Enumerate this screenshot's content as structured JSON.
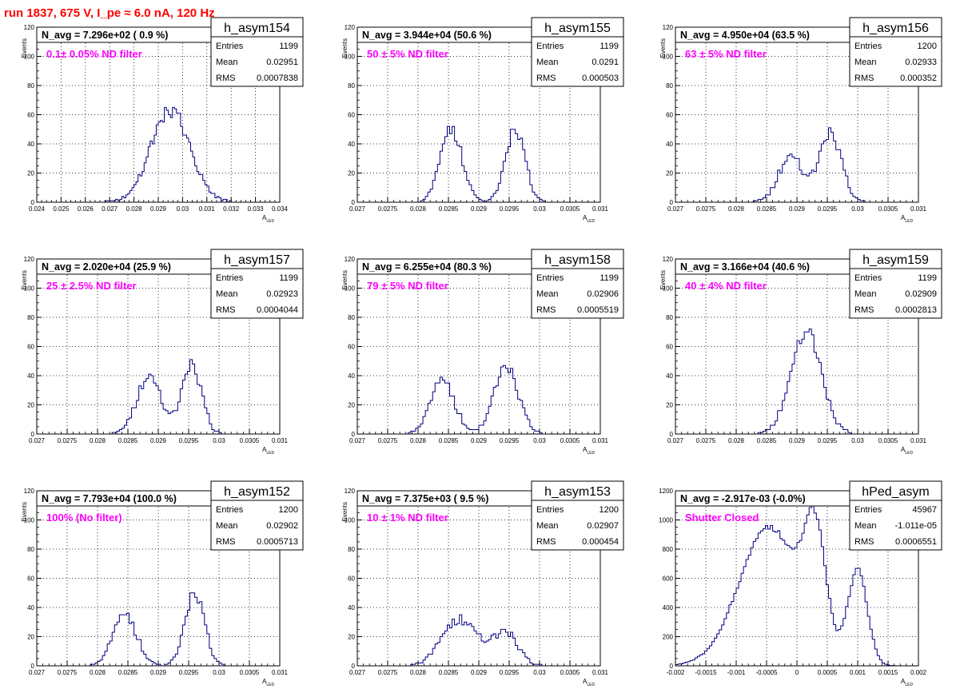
{
  "page": {
    "title": "run 1837,   675 V, I_pe ≈ 6.0 nA, 120 Hz"
  },
  "style": {
    "title_color": "#ff0000",
    "annotation_color": "#ff00ff",
    "hist_color": "#000080",
    "frame_color": "#000000",
    "grid_color": "#000000"
  },
  "chart_data": [
    {
      "type": "histogram",
      "name": "h_asym154",
      "nstat_label": "N_avg = 7.296e+02 ( 0.9 %)",
      "annotation": "0.1± 0.05% ND filter",
      "stats": {
        "entries": "1199",
        "mean": "0.02951",
        "rms": "0.0007838"
      },
      "xlabel": "A",
      "xlabel_sub": "LED",
      "ylabel": "Events",
      "xlim": [
        0.024,
        0.034
      ],
      "ylim": [
        0,
        120
      ],
      "xticks": [
        0.024,
        0.025,
        0.026,
        0.027,
        0.028,
        0.029,
        0.03,
        0.031,
        0.032,
        0.033,
        0.034
      ],
      "xtick_labels": [
        "0.024",
        "0.025",
        "0.026",
        "0.027",
        "0.028",
        "0.029",
        "0.03",
        "0.031",
        "0.032",
        "0.033",
        "0.034"
      ],
      "yticks": [
        0,
        20,
        40,
        60,
        80,
        100,
        120
      ],
      "ytick_labels": [
        "0",
        "20",
        "40",
        "60",
        "80",
        "100",
        "120"
      ],
      "hist": {
        "mode": "gauss",
        "n": 120,
        "peaks": [
          [
            0.0295,
            0.0008,
            63
          ]
        ]
      }
    },
    {
      "type": "histogram",
      "name": "h_asym155",
      "nstat_label": "N_avg = 3.944e+04 (50.6 %)",
      "annotation": "50 ± 5% ND filter",
      "stats": {
        "entries": "1199",
        "mean": "0.0291",
        "rms": "0.000503"
      },
      "xlabel": "A",
      "xlabel_sub": "LED",
      "ylabel": "Events",
      "xlim": [
        0.027,
        0.031
      ],
      "ylim": [
        0,
        120
      ],
      "xticks": [
        0.027,
        0.0275,
        0.028,
        0.0285,
        0.029,
        0.0295,
        0.03,
        0.0305,
        0.031
      ],
      "xtick_labels": [
        "0.027",
        "0.0275",
        "0.028",
        "0.0285",
        "0.029",
        "0.0295",
        "0.03",
        "0.0305",
        "0.031"
      ],
      "yticks": [
        0,
        20,
        40,
        60,
        80,
        100,
        120
      ],
      "ytick_labels": [
        "0",
        "20",
        "40",
        "60",
        "80",
        "100",
        "120"
      ],
      "hist": {
        "mode": "gauss",
        "n": 100,
        "peaks": [
          [
            0.02855,
            0.00018,
            50
          ],
          [
            0.0296,
            0.00016,
            50
          ]
        ]
      }
    },
    {
      "type": "histogram",
      "name": "h_asym156",
      "nstat_label": "N_avg = 4.950e+04 (63.5 %)",
      "annotation": "63 ± 5% ND filter",
      "stats": {
        "entries": "1200",
        "mean": "0.02933",
        "rms": "0.000352"
      },
      "xlabel": "A",
      "xlabel_sub": "LED",
      "ylabel": "Events",
      "xlim": [
        0.027,
        0.031
      ],
      "ylim": [
        0,
        120
      ],
      "xticks": [
        0.027,
        0.0275,
        0.028,
        0.0285,
        0.029,
        0.0295,
        0.03,
        0.0305,
        0.031
      ],
      "xtick_labels": [
        "0.027",
        "0.0275",
        "0.028",
        "0.0285",
        "0.029",
        "0.0295",
        "0.03",
        "0.0305",
        "0.031"
      ],
      "yticks": [
        0,
        20,
        40,
        60,
        80,
        100,
        120
      ],
      "ytick_labels": [
        "0",
        "20",
        "40",
        "60",
        "80",
        "100",
        "120"
      ],
      "hist": {
        "mode": "gauss",
        "n": 100,
        "peaks": [
          [
            0.0289,
            0.0002,
            32
          ],
          [
            0.02955,
            0.00018,
            48
          ]
        ]
      }
    },
    {
      "type": "histogram",
      "name": "h_asym157",
      "nstat_label": "N_avg = 2.020e+04 (25.9 %)",
      "annotation": "25 ± 2.5% ND filter",
      "stats": {
        "entries": "1199",
        "mean": "0.02923",
        "rms": "0.0004044"
      },
      "xlabel": "A",
      "xlabel_sub": "LED",
      "ylabel": "Events",
      "xlim": [
        0.027,
        0.031
      ],
      "ylim": [
        0,
        120
      ],
      "xticks": [
        0.027,
        0.0275,
        0.028,
        0.0285,
        0.029,
        0.0295,
        0.03,
        0.0305,
        0.031
      ],
      "xtick_labels": [
        "0.027",
        "0.0275",
        "0.028",
        "0.0285",
        "0.029",
        "0.0295",
        "0.03",
        "0.0305",
        "0.031"
      ],
      "yticks": [
        0,
        20,
        40,
        60,
        80,
        100,
        120
      ],
      "ytick_labels": [
        "0",
        "20",
        "40",
        "60",
        "80",
        "100",
        "120"
      ],
      "hist": {
        "mode": "gauss",
        "n": 100,
        "peaks": [
          [
            0.02885,
            0.0002,
            40
          ],
          [
            0.02955,
            0.00016,
            48
          ]
        ]
      }
    },
    {
      "type": "histogram",
      "name": "h_asym158",
      "nstat_label": "N_avg = 6.255e+04 (80.3 %)",
      "annotation": "79 ± 5% ND filter",
      "stats": {
        "entries": "1199",
        "mean": "0.02906",
        "rms": "0.0005519"
      },
      "xlabel": "A",
      "xlabel_sub": "LED",
      "ylabel": "Events",
      "xlim": [
        0.027,
        0.031
      ],
      "ylim": [
        0,
        120
      ],
      "xticks": [
        0.027,
        0.0275,
        0.028,
        0.0285,
        0.029,
        0.0295,
        0.03,
        0.0305,
        0.031
      ],
      "xtick_labels": [
        "0.027",
        "0.0275",
        "0.028",
        "0.0285",
        "0.029",
        "0.0295",
        "0.03",
        "0.0305",
        "0.031"
      ],
      "yticks": [
        0,
        20,
        40,
        60,
        80,
        100,
        120
      ],
      "ytick_labels": [
        "0",
        "20",
        "40",
        "60",
        "80",
        "100",
        "120"
      ],
      "hist": {
        "mode": "gauss",
        "n": 100,
        "peaks": [
          [
            0.0284,
            0.0002,
            36
          ],
          [
            0.02945,
            0.0002,
            46
          ]
        ]
      }
    },
    {
      "type": "histogram",
      "name": "h_asym159",
      "nstat_label": "N_avg = 3.166e+04 (40.6 %)",
      "annotation": "40 ± 4% ND filter",
      "stats": {
        "entries": "1199",
        "mean": "0.02909",
        "rms": "0.0002813"
      },
      "xlabel": "A",
      "xlabel_sub": "LED",
      "ylabel": "Events",
      "xlim": [
        0.027,
        0.031
      ],
      "ylim": [
        0,
        120
      ],
      "xticks": [
        0.027,
        0.0275,
        0.028,
        0.0285,
        0.029,
        0.0295,
        0.03,
        0.0305,
        0.031
      ],
      "xtick_labels": [
        "0.027",
        "0.0275",
        "0.028",
        "0.0285",
        "0.029",
        "0.0295",
        "0.03",
        "0.0305",
        "0.031"
      ],
      "yticks": [
        0,
        20,
        40,
        60,
        80,
        100,
        120
      ],
      "ytick_labels": [
        "0",
        "20",
        "40",
        "60",
        "80",
        "100",
        "120"
      ],
      "hist": {
        "mode": "gauss",
        "n": 100,
        "peaks": [
          [
            0.02915,
            0.00025,
            70
          ]
        ]
      }
    },
    {
      "type": "histogram",
      "name": "h_asym152",
      "nstat_label": "N_avg = 7.793e+04 (100.0 %)",
      "annotation": "100% (No filter)",
      "stats": {
        "entries": "1200",
        "mean": "0.02902",
        "rms": "0.0005713"
      },
      "xlabel": "A",
      "xlabel_sub": "LED",
      "ylabel": "Events",
      "xlim": [
        0.027,
        0.031
      ],
      "ylim": [
        0,
        120
      ],
      "xticks": [
        0.027,
        0.0275,
        0.028,
        0.0285,
        0.029,
        0.0295,
        0.03,
        0.0305,
        0.031
      ],
      "xtick_labels": [
        "0.027",
        "0.0275",
        "0.028",
        "0.0285",
        "0.029",
        "0.0295",
        "0.03",
        "0.0305",
        "0.031"
      ],
      "yticks": [
        0,
        20,
        40,
        60,
        80,
        100,
        120
      ],
      "ytick_labels": [
        "0",
        "20",
        "40",
        "60",
        "80",
        "100",
        "120"
      ],
      "hist": {
        "mode": "gauss",
        "n": 100,
        "peaks": [
          [
            0.02845,
            0.0002,
            34
          ],
          [
            0.0296,
            0.00016,
            50
          ]
        ]
      }
    },
    {
      "type": "histogram",
      "name": "h_asym153",
      "nstat_label": "N_avg = 7.375e+03 ( 9.5 %)",
      "annotation": "10 ± 1% ND filter",
      "stats": {
        "entries": "1200",
        "mean": "0.02907",
        "rms": "0.000454"
      },
      "xlabel": "A",
      "xlabel_sub": "LED",
      "ylabel": "Events",
      "xlim": [
        0.027,
        0.031
      ],
      "ylim": [
        0,
        120
      ],
      "xticks": [
        0.027,
        0.0275,
        0.028,
        0.0285,
        0.029,
        0.0295,
        0.03,
        0.0305,
        0.031
      ],
      "xtick_labels": [
        "0.027",
        "0.0275",
        "0.028",
        "0.0285",
        "0.029",
        "0.0295",
        "0.03",
        "0.0305",
        "0.031"
      ],
      "yticks": [
        0,
        20,
        40,
        60,
        80,
        100,
        120
      ],
      "ytick_labels": [
        "0",
        "20",
        "40",
        "60",
        "80",
        "100",
        "120"
      ],
      "hist": {
        "mode": "gauss",
        "n": 100,
        "peaks": [
          [
            0.0287,
            0.0003,
            32
          ],
          [
            0.02945,
            0.0002,
            22
          ]
        ]
      }
    },
    {
      "type": "histogram",
      "name": "hPed_asym",
      "nstat_label": "N_avg = -2.917e-03 (-0.0%)",
      "annotation": "Shutter Closed",
      "stats": {
        "entries": "45967",
        "mean": "-1.011e-05",
        "rms": "0.0006551"
      },
      "xlabel": "A",
      "xlabel_sub": "LED",
      "ylabel": "",
      "xlim": [
        -0.002,
        0.002
      ],
      "ylim": [
        0,
        1200
      ],
      "xticks": [
        -0.002,
        -0.0015,
        -0.001,
        -0.0005,
        0,
        0.0005,
        0.001,
        0.0015,
        0.002
      ],
      "xtick_labels": [
        "-0.002",
        "-0.0015",
        "-0.001",
        "-0.0005",
        "0",
        "0.0005",
        "0.001",
        "0.0015",
        "0.002"
      ],
      "yticks": [
        0,
        200,
        400,
        600,
        800,
        1000,
        1200
      ],
      "ytick_labels": [
        "0",
        "200",
        "400",
        "600",
        "800",
        "1000",
        "1200"
      ],
      "hist": {
        "mode": "gauss",
        "n": 100,
        "peaks": [
          [
            -0.00045,
            0.0005,
            950
          ],
          [
            0.0003,
            0.00018,
            750
          ],
          [
            0.001,
            0.00016,
            650
          ]
        ]
      }
    }
  ]
}
